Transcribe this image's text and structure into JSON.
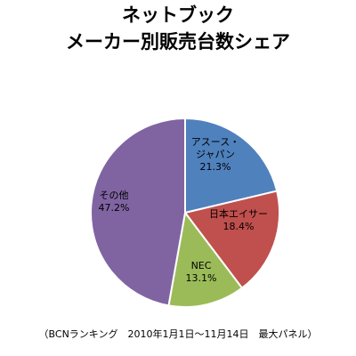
{
  "chart_data": {
    "type": "pie",
    "title_lines": [
      "ネットブック",
      "メーカー別販売台数シェア"
    ],
    "slices": [
      {
        "label": "アスース・ジャパン",
        "label_lines": [
          "アスース・",
          "ジャパン"
        ],
        "value": 21.3,
        "value_text": "21.3%",
        "color": "#4f81bd"
      },
      {
        "label": "日本エイサー",
        "label_lines": [
          "日本エイサー"
        ],
        "value": 18.4,
        "value_text": "18.4%",
        "color": "#c0504d"
      },
      {
        "label": "NEC",
        "label_lines": [
          "NEC"
        ],
        "value": 13.1,
        "value_text": "13.1%",
        "color": "#9bbb59"
      },
      {
        "label": "その他",
        "label_lines": [
          "その他"
        ],
        "value": 47.2,
        "value_text": "47.2%",
        "color": "#8064a2"
      }
    ],
    "start_angle": "12 o'clock",
    "direction": "clockwise",
    "legend": "none",
    "footnote": "（BCNランキング　2010年1月1日～11月14日　最大パネル）"
  }
}
